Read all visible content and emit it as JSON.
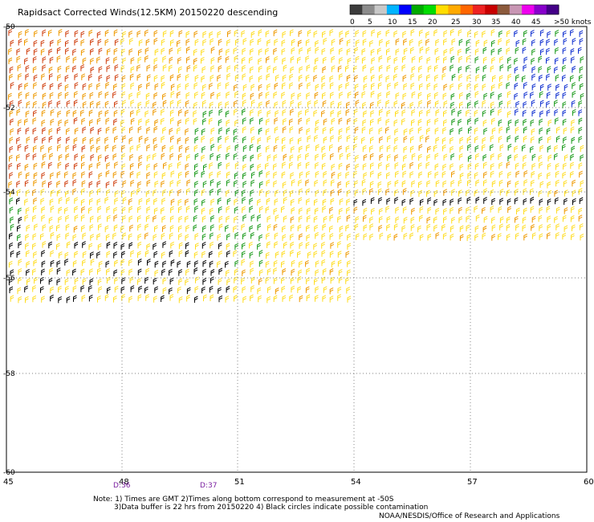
{
  "title": "Rapidsact Corrected Winds(12.5KM) 20150220 descending",
  "legend": {
    "labels": [
      "0",
      "5",
      "10",
      "15",
      "20",
      "25",
      "30",
      "35",
      "40",
      "45",
      ">50 knots"
    ],
    "colors": [
      "#3c3c3c",
      "#8c8c8c",
      "#c8c8c8",
      "#00b4ff",
      "#0000ff",
      "#00aa00",
      "#00dd00",
      "#ffdd00",
      "#ffaa00",
      "#ff6600",
      "#ee2222",
      "#c80000",
      "#8c5a3c",
      "#c896b4",
      "#ee00ee",
      "#8800cc",
      "#440088"
    ]
  },
  "axes": {
    "lon_ticks": [
      "45",
      "48",
      "51",
      "54",
      "57",
      "60"
    ],
    "lat_ticks": [
      "-50",
      "-52",
      "-54",
      "-56",
      "-58",
      "-60"
    ]
  },
  "time_labels": [
    "D:36",
    "D:37"
  ],
  "notes": [
    "Note: 1) Times are GMT 2)Times along bottom correspond to measurement at -50S",
    "3)Data buffer is 22 hrs from 20150220 4) Black circles indicate possible contamination"
  ],
  "credit": "NOAA/NESDIS/Office of Research and Applications",
  "wind_colors": {
    "calm": "#000000",
    "green": "#1a9a1a",
    "yellow": "#ffdd22",
    "orange": "#ee9900",
    "red": "#d04010",
    "blue": "#1030d0"
  }
}
